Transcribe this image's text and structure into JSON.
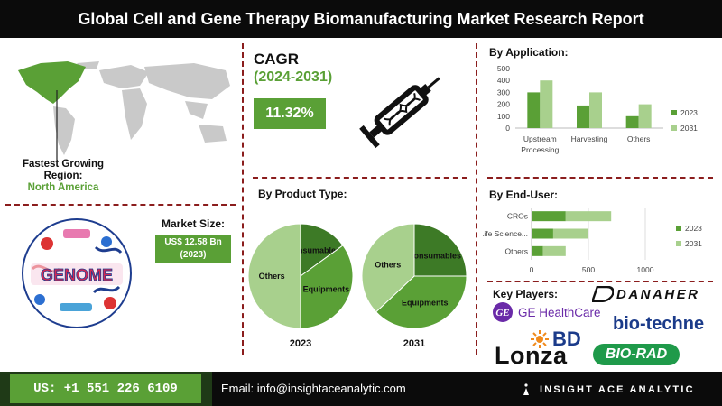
{
  "header": {
    "title": "Global Cell and Gene Therapy Biomanufacturing Market Research Report"
  },
  "region": {
    "label_line1": "Fastest Growing",
    "label_line2": "Region:",
    "value": "North America"
  },
  "cagr": {
    "title": "CAGR",
    "years": "(2024-2031)",
    "value": "11.32%"
  },
  "market_size": {
    "label": "Market Size:",
    "value_line1": "US$ 12.58 Bn",
    "value_line2": "(2023)"
  },
  "genome_art": {
    "text": "GENOME"
  },
  "by_application": {
    "title": "By Application:",
    "chart_data": {
      "type": "bar",
      "categories": [
        "Upstream Processing",
        "Harvesting",
        "Others"
      ],
      "category_lines": [
        [
          "Upstream",
          "Processing"
        ],
        [
          "Harvesting"
        ],
        [
          "Others"
        ]
      ],
      "series": [
        {
          "name": "2023",
          "values": [
            300,
            190,
            100
          ],
          "color": "#5aa036"
        },
        {
          "name": "2031",
          "values": [
            400,
            300,
            200
          ],
          "color": "#a8d08d"
        }
      ],
      "ylim": [
        0,
        500
      ],
      "yticks": [
        0,
        100,
        200,
        300,
        400,
        500
      ],
      "legend": "right",
      "grid": false
    }
  },
  "by_end_user": {
    "title": "By End-User:",
    "chart_data": {
      "type": "bar",
      "orientation": "horizontal",
      "categories": [
        "CROs",
        "Life Science...",
        "Others"
      ],
      "series": [
        {
          "name": "2023",
          "values": [
            300,
            190,
            100
          ],
          "color": "#5aa036"
        },
        {
          "name": "2031",
          "values": [
            700,
            500,
            300
          ],
          "color": "#a8d08d"
        }
      ],
      "xlim": [
        0,
        1000
      ],
      "xticks": [
        0,
        500,
        1000
      ],
      "legend": "right",
      "grid": true
    }
  },
  "by_product_type": {
    "title": "By Product Type:",
    "chart_data": [
      {
        "type": "pie",
        "title": "2023",
        "labels": [
          "Consumables",
          "Equipments",
          "Others"
        ],
        "values": [
          15,
          35,
          50
        ],
        "colors": [
          "#3d7a26",
          "#5aa036",
          "#a8d08d"
        ]
      },
      {
        "type": "pie",
        "title": "2031",
        "labels": [
          "Consumables",
          "Equipments",
          "Others"
        ],
        "values": [
          25,
          38,
          37
        ],
        "colors": [
          "#3d7a26",
          "#5aa036",
          "#a8d08d"
        ]
      }
    ]
  },
  "key_players": {
    "title": "Key Players:",
    "logos": {
      "danaher": "DANAHER",
      "ge": "GE HealthCare",
      "ge_mark": "GE",
      "biotechne": "bio-techne",
      "bd": "BD",
      "lonza": "Lonza",
      "biorad": "BIO-RAD"
    }
  },
  "footer": {
    "phone": "US: +1 551 226 6109",
    "email": "Email: info@insightaceanalytic.com",
    "brand": "INSIGHT ACE ANALYTIC"
  },
  "colors": {
    "accent_green": "#5aa036",
    "light_green": "#a8d08d",
    "dark_green": "#3d7a26",
    "divider": "#8b1d1d"
  }
}
